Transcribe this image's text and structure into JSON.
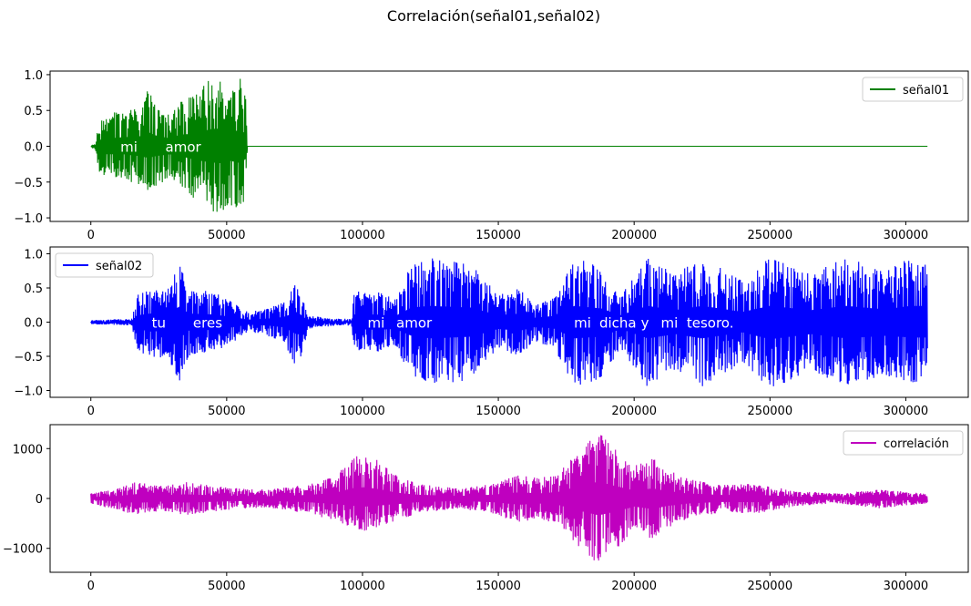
{
  "figure": {
    "title": "Correlación(señal01,señal02)"
  },
  "chart_data": [
    {
      "type": "line",
      "title": "",
      "xlabel": "",
      "ylabel": "",
      "xlim": [
        -15000,
        323000
      ],
      "ylim": [
        -1.05,
        1.05
      ],
      "x_ticks": [
        0,
        50000,
        100000,
        150000,
        200000,
        250000,
        300000
      ],
      "x_tick_labels": [
        "0",
        "50000",
        "100000",
        "150000",
        "200000",
        "250000",
        "300000"
      ],
      "y_ticks": [
        1.0,
        0.5,
        0.0,
        -0.5,
        -1.0
      ],
      "y_tick_labels": [
        "1.0",
        "0.5",
        "0.0",
        "−0.5",
        "−1.0"
      ],
      "legend": {
        "position": "upper right"
      },
      "series": [
        {
          "name": "señal01",
          "color": "#008000",
          "x_range": [
            0,
            308000
          ],
          "envelope": [
            {
              "x": 0,
              "upper": 0.0,
              "lower": 0.0
            },
            {
              "x": 1500,
              "upper": 0.05,
              "lower": -0.05
            },
            {
              "x": 3000,
              "upper": 0.35,
              "lower": -0.35
            },
            {
              "x": 6000,
              "upper": 0.45,
              "lower": -0.45
            },
            {
              "x": 12000,
              "upper": 0.5,
              "lower": -0.45
            },
            {
              "x": 18000,
              "upper": 0.55,
              "lower": -0.55
            },
            {
              "x": 21000,
              "upper": 0.8,
              "lower": -0.65
            },
            {
              "x": 24000,
              "upper": 0.6,
              "lower": -0.55
            },
            {
              "x": 29000,
              "upper": 0.45,
              "lower": -0.45
            },
            {
              "x": 33000,
              "upper": 0.65,
              "lower": -0.55
            },
            {
              "x": 38000,
              "upper": 0.7,
              "lower": -0.75
            },
            {
              "x": 44000,
              "upper": 0.95,
              "lower": -0.9
            },
            {
              "x": 48000,
              "upper": 1.0,
              "lower": -0.95
            },
            {
              "x": 51000,
              "upper": 0.7,
              "lower": -0.8
            },
            {
              "x": 55000,
              "upper": 0.95,
              "lower": -0.95
            },
            {
              "x": 57000,
              "upper": 0.7,
              "lower": -0.7
            },
            {
              "x": 57600,
              "upper": 0.0,
              "lower": 0.0
            },
            {
              "x": 308000,
              "upper": 0.0,
              "lower": 0.0
            }
          ]
        }
      ],
      "annotations": [
        {
          "text": "mi",
          "x": 14000,
          "y": 0.0
        },
        {
          "text": "amor",
          "x": 34000,
          "y": 0.0
        }
      ]
    },
    {
      "type": "line",
      "title": "",
      "xlabel": "",
      "ylabel": "",
      "xlim": [
        -15000,
        323000
      ],
      "ylim": [
        -1.1,
        1.1
      ],
      "x_ticks": [
        0,
        50000,
        100000,
        150000,
        200000,
        250000,
        300000
      ],
      "x_tick_labels": [
        "0",
        "50000",
        "100000",
        "150000",
        "200000",
        "250000",
        "300000"
      ],
      "y_ticks": [
        1.0,
        0.5,
        0.0,
        -0.5,
        -1.0
      ],
      "y_tick_labels": [
        "1.0",
        "0.5",
        "0.0",
        "−0.5",
        "−1.0"
      ],
      "legend": {
        "position": "upper left"
      },
      "series": [
        {
          "name": "señal02",
          "color": "#0000ff",
          "x_range": [
            0,
            308000
          ],
          "envelope": [
            {
              "x": 0,
              "upper": 0.03,
              "lower": -0.03
            },
            {
              "x": 15000,
              "upper": 0.05,
              "lower": -0.05
            },
            {
              "x": 17000,
              "upper": 0.4,
              "lower": -0.4
            },
            {
              "x": 22000,
              "upper": 0.5,
              "lower": -0.55
            },
            {
              "x": 28000,
              "upper": 0.45,
              "lower": -0.5
            },
            {
              "x": 33000,
              "upper": 0.95,
              "lower": -0.9
            },
            {
              "x": 36000,
              "upper": 0.5,
              "lower": -0.5
            },
            {
              "x": 45000,
              "upper": 0.45,
              "lower": -0.45
            },
            {
              "x": 52000,
              "upper": 0.3,
              "lower": -0.3
            },
            {
              "x": 58000,
              "upper": 0.15,
              "lower": -0.15
            },
            {
              "x": 65000,
              "upper": 0.2,
              "lower": -0.2
            },
            {
              "x": 71000,
              "upper": 0.3,
              "lower": -0.3
            },
            {
              "x": 76000,
              "upper": 0.6,
              "lower": -0.75
            },
            {
              "x": 80000,
              "upper": 0.1,
              "lower": -0.1
            },
            {
              "x": 90000,
              "upper": 0.05,
              "lower": -0.05
            },
            {
              "x": 96000,
              "upper": 0.05,
              "lower": -0.05
            },
            {
              "x": 97000,
              "upper": 0.45,
              "lower": -0.4
            },
            {
              "x": 105000,
              "upper": 0.45,
              "lower": -0.45
            },
            {
              "x": 112000,
              "upper": 0.35,
              "lower": -0.4
            },
            {
              "x": 118000,
              "upper": 0.85,
              "lower": -0.8
            },
            {
              "x": 125000,
              "upper": 0.95,
              "lower": -0.95
            },
            {
              "x": 140000,
              "upper": 0.85,
              "lower": -0.85
            },
            {
              "x": 150000,
              "upper": 0.4,
              "lower": -0.4
            },
            {
              "x": 158000,
              "upper": 0.5,
              "lower": -0.5
            },
            {
              "x": 163000,
              "upper": 0.25,
              "lower": -0.3
            },
            {
              "x": 170000,
              "upper": 0.35,
              "lower": -0.35
            },
            {
              "x": 178000,
              "upper": 0.95,
              "lower": -0.95
            },
            {
              "x": 188000,
              "upper": 0.8,
              "lower": -0.85
            },
            {
              "x": 195000,
              "upper": 0.4,
              "lower": -0.4
            },
            {
              "x": 205000,
              "upper": 0.95,
              "lower": -0.95
            },
            {
              "x": 215000,
              "upper": 0.7,
              "lower": -0.7
            },
            {
              "x": 225000,
              "upper": 0.95,
              "lower": -0.95
            },
            {
              "x": 240000,
              "upper": 0.6,
              "lower": -0.6
            },
            {
              "x": 250000,
              "upper": 0.95,
              "lower": -1.0
            },
            {
              "x": 265000,
              "upper": 0.7,
              "lower": -0.7
            },
            {
              "x": 278000,
              "upper": 0.95,
              "lower": -0.95
            },
            {
              "x": 292000,
              "upper": 0.75,
              "lower": -0.8
            },
            {
              "x": 302000,
              "upper": 0.95,
              "lower": -0.9
            },
            {
              "x": 308000,
              "upper": 0.95,
              "lower": -0.9
            }
          ]
        }
      ],
      "annotations": [
        {
          "text": "tu",
          "x": 25000,
          "y": 0.0
        },
        {
          "text": "eres",
          "x": 43000,
          "y": 0.0
        },
        {
          "text": "mi",
          "x": 105000,
          "y": 0.0
        },
        {
          "text": "amor",
          "x": 119000,
          "y": 0.0
        },
        {
          "text": "mi",
          "x": 181000,
          "y": 0.0
        },
        {
          "text": "dicha",
          "x": 194000,
          "y": 0.0
        },
        {
          "text": "y",
          "x": 204000,
          "y": 0.0
        },
        {
          "text": "mi",
          "x": 213000,
          "y": 0.0
        },
        {
          "text": "tesoro.",
          "x": 228000,
          "y": 0.0
        }
      ]
    },
    {
      "type": "line",
      "title": "",
      "xlabel": "",
      "ylabel": "",
      "xlim": [
        -15000,
        323000
      ],
      "ylim": [
        -1480,
        1480
      ],
      "x_ticks": [
        0,
        50000,
        100000,
        150000,
        200000,
        250000,
        300000
      ],
      "x_tick_labels": [
        "0",
        "50000",
        "100000",
        "150000",
        "200000",
        "250000",
        "300000"
      ],
      "y_ticks": [
        1000,
        0,
        -1000
      ],
      "y_tick_labels": [
        "1000",
        "0",
        "−1000"
      ],
      "legend": {
        "position": "upper right"
      },
      "series": [
        {
          "name": "correlación",
          "color": "#bf00bf",
          "x_range": [
            0,
            308000
          ],
          "envelope": [
            {
              "x": 0,
              "upper": 100,
              "lower": -100
            },
            {
              "x": 10000,
              "upper": 200,
              "lower": -250
            },
            {
              "x": 17000,
              "upper": 350,
              "lower": -350
            },
            {
              "x": 25000,
              "upper": 250,
              "lower": -250
            },
            {
              "x": 35000,
              "upper": 330,
              "lower": -330
            },
            {
              "x": 50000,
              "upper": 220,
              "lower": -230
            },
            {
              "x": 65000,
              "upper": 180,
              "lower": -180
            },
            {
              "x": 80000,
              "upper": 280,
              "lower": -300
            },
            {
              "x": 90000,
              "upper": 450,
              "lower": -450
            },
            {
              "x": 97000,
              "upper": 850,
              "lower": -600
            },
            {
              "x": 101000,
              "upper": 900,
              "lower": -650
            },
            {
              "x": 106000,
              "upper": 750,
              "lower": -560
            },
            {
              "x": 113000,
              "upper": 450,
              "lower": -450
            },
            {
              "x": 120000,
              "upper": 300,
              "lower": -300
            },
            {
              "x": 135000,
              "upper": 200,
              "lower": -200
            },
            {
              "x": 148000,
              "upper": 300,
              "lower": -300
            },
            {
              "x": 158000,
              "upper": 500,
              "lower": -500
            },
            {
              "x": 165000,
              "upper": 400,
              "lower": -400
            },
            {
              "x": 172000,
              "upper": 520,
              "lower": -520
            },
            {
              "x": 180000,
              "upper": 1000,
              "lower": -1000
            },
            {
              "x": 187000,
              "upper": 1350,
              "lower": -1350
            },
            {
              "x": 193000,
              "upper": 1000,
              "lower": -1050
            },
            {
              "x": 200000,
              "upper": 650,
              "lower": -650
            },
            {
              "x": 207000,
              "upper": 800,
              "lower": -850
            },
            {
              "x": 212000,
              "upper": 600,
              "lower": -600
            },
            {
              "x": 220000,
              "upper": 400,
              "lower": -400
            },
            {
              "x": 232000,
              "upper": 280,
              "lower": -280
            },
            {
              "x": 245000,
              "upper": 300,
              "lower": -300
            },
            {
              "x": 260000,
              "upper": 150,
              "lower": -150
            },
            {
              "x": 275000,
              "upper": 100,
              "lower": -100
            },
            {
              "x": 290000,
              "upper": 180,
              "lower": -200
            },
            {
              "x": 308000,
              "upper": 100,
              "lower": -100
            }
          ]
        }
      ],
      "annotations": []
    }
  ]
}
